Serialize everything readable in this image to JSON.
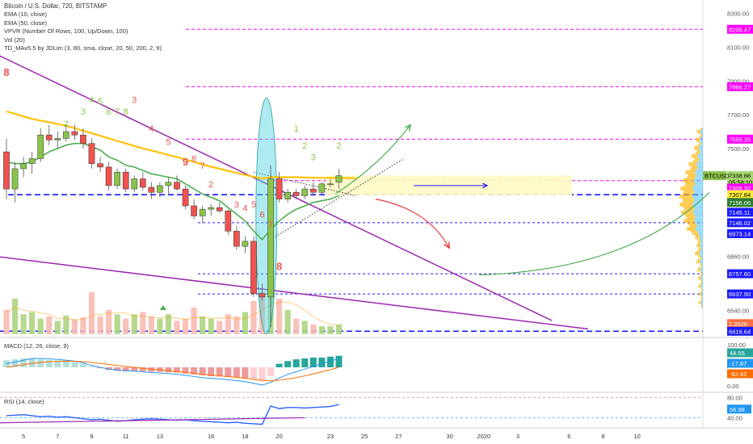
{
  "header": {
    "symbol_line": "Bitcoin / U.S. Dollar, 720, BITSTAMP",
    "indicators": [
      "EMA (10, close)",
      "EMA (50, close)",
      "VPVR (Number Of Rows, 100, Up/Down, 100)",
      "Vol (20)",
      "TD_MAv5.5 by JDLim (3, 80, sma, close, 20, 50, 200, 2, 9)"
    ]
  },
  "colors": {
    "up": "#8bc34a",
    "down": "#ef5350",
    "ema10": "#4caf50",
    "ema50": "#ffc107",
    "trend": "#9c27b0",
    "magenta": "#e91e63",
    "blue_dash": "#1a1aff",
    "highlight": "#fff9c4",
    "ellipse": "#4dd0e1",
    "macd_line": "#2196f3",
    "signal_line": "#ff6d00",
    "rsi_line": "#2962ff"
  },
  "price_axis": {
    "min": 6380,
    "max": 8380,
    "ticks": [
      "8300.00",
      "8100.00",
      "7900.00",
      "7700.00",
      "7500.00",
      "6860.00",
      "6540.00"
    ],
    "tags": [
      {
        "label": "8206.47",
        "value": 8206.47,
        "bg": "#ff00ff",
        "fg": "#ffffff"
      },
      {
        "label": "7866.27",
        "value": 7866.27,
        "bg": "#ff00ff",
        "fg": "#ffffff"
      },
      {
        "label": "7555.35",
        "value": 7555.35,
        "bg": "#ff00ff",
        "fg": "#ffffff"
      },
      {
        "label": "7338.86",
        "value": 7338.86,
        "bg": "#a5d66b",
        "fg": "#000000"
      },
      {
        "label": "05:58:10",
        "value": 7300,
        "bg": "#a5d66b",
        "fg": "#000000"
      },
      {
        "label": "7309.32",
        "value": 7265,
        "bg": "#ff00ff",
        "fg": "#ffffff"
      },
      {
        "label": "7307.84",
        "value": 7226,
        "bg": "#ffeb3b",
        "fg": "#000000"
      },
      {
        "label": "7156.06",
        "value": 7180,
        "bg": "#2e7d32",
        "fg": "#ffffff"
      },
      {
        "label": "7145.11",
        "value": 7122,
        "bg": "#1a1aff",
        "fg": "#ffffff"
      },
      {
        "label": "7146.02",
        "value": 7060,
        "bg": "#1a1aff",
        "fg": "#ffffff"
      },
      {
        "label": "6973.14",
        "value": 6995,
        "bg": "#1a1aff",
        "fg": "#ffffff"
      },
      {
        "label": "6757.60",
        "value": 6757.6,
        "bg": "#1a1aff",
        "fg": "#ffffff"
      },
      {
        "label": "6637.90",
        "value": 6637.9,
        "bg": "#1a1aff",
        "fg": "#ffffff"
      },
      {
        "label": "2.262K",
        "value": 6462,
        "bg": "#ff7043",
        "fg": "#ffffff"
      },
      {
        "label": "6416.64",
        "value": 6416.64,
        "bg": "#1a1aff",
        "fg": "#ffffff"
      }
    ],
    "badge": "BTCUSD"
  },
  "x_axis": {
    "labels": [
      {
        "t": "5",
        "i": 2
      },
      {
        "t": "7",
        "i": 6
      },
      {
        "t": "9",
        "i": 10
      },
      {
        "t": "11",
        "i": 14
      },
      {
        "t": "13",
        "i": 18
      },
      {
        "t": "16",
        "i": 24
      },
      {
        "t": "18",
        "i": 28
      },
      {
        "t": "20",
        "i": 32
      },
      {
        "t": "23",
        "i": 38
      },
      {
        "t": "25",
        "i": 42
      },
      {
        "t": "27",
        "i": 46
      },
      {
        "t": "30",
        "i": 52
      },
      {
        "t": "2020",
        "i": 56
      },
      {
        "t": "3",
        "i": 60
      },
      {
        "t": "6",
        "i": 66
      },
      {
        "t": "8",
        "i": 70
      },
      {
        "t": "10",
        "i": 74
      }
    ]
  },
  "levels": {
    "magenta": [
      8206.47,
      7866.27,
      7555.35,
      7309.32
    ],
    "blue": [
      7226,
      7060,
      6757.6,
      6637.9,
      6416.64
    ]
  },
  "chart_data": {
    "type": "candlestick",
    "candles": [
      [
        7480,
        7560,
        7200,
        7260
      ],
      [
        7260,
        7420,
        7180,
        7380
      ],
      [
        7380,
        7450,
        7330,
        7410
      ],
      [
        7410,
        7480,
        7350,
        7440
      ],
      [
        7440,
        7620,
        7420,
        7580
      ],
      [
        7580,
        7640,
        7520,
        7550
      ],
      [
        7550,
        7600,
        7500,
        7560
      ],
      [
        7560,
        7640,
        7540,
        7600
      ],
      [
        7600,
        7640,
        7550,
        7580
      ],
      [
        7580,
        7620,
        7500,
        7530
      ],
      [
        7530,
        7560,
        7380,
        7410
      ],
      [
        7410,
        7450,
        7360,
        7390
      ],
      [
        7390,
        7420,
        7250,
        7280
      ],
      [
        7280,
        7380,
        7260,
        7360
      ],
      [
        7360,
        7380,
        7240,
        7260
      ],
      [
        7260,
        7340,
        7240,
        7320
      ],
      [
        7320,
        7360,
        7250,
        7270
      ],
      [
        7270,
        7300,
        7200,
        7240
      ],
      [
        7240,
        7300,
        7210,
        7280
      ],
      [
        7280,
        7330,
        7230,
        7300
      ],
      [
        7300,
        7340,
        7250,
        7260
      ],
      [
        7260,
        7280,
        7140,
        7160
      ],
      [
        7160,
        7200,
        7080,
        7100
      ],
      [
        7100,
        7160,
        7060,
        7140
      ],
      [
        7140,
        7170,
        7100,
        7150
      ],
      [
        7150,
        7180,
        7120,
        7130
      ],
      [
        7130,
        7140,
        6990,
        7010
      ],
      [
        7010,
        7040,
        6900,
        6920
      ],
      [
        6920,
        6980,
        6880,
        6950
      ],
      [
        6950,
        6980,
        6620,
        6640
      ],
      [
        6640,
        6700,
        6600,
        6620
      ],
      [
        6620,
        7400,
        6440,
        7320
      ],
      [
        7320,
        7360,
        7180,
        7200
      ],
      [
        7200,
        7260,
        7180,
        7240
      ],
      [
        7240,
        7260,
        7200,
        7220
      ],
      [
        7220,
        7280,
        7200,
        7260
      ],
      [
        7260,
        7300,
        7220,
        7240
      ],
      [
        7240,
        7300,
        7230,
        7290
      ],
      [
        7290,
        7320,
        7270,
        7290
      ],
      [
        7300,
        7380,
        7260,
        7338.86
      ]
    ],
    "ema10": [
      7420,
      7410,
      7410,
      7420,
      7450,
      7480,
      7500,
      7520,
      7530,
      7530,
      7510,
      7490,
      7450,
      7430,
      7400,
      7390,
      7370,
      7350,
      7340,
      7330,
      7320,
      7290,
      7260,
      7230,
      7210,
      7190,
      7150,
      7110,
      7070,
      7010,
      6960,
      7020,
      7070,
      7110,
      7140,
      7160,
      7180,
      7190,
      7200,
      7220
    ],
    "ema50": [
      7720,
      7705,
      7690,
      7675,
      7665,
      7655,
      7645,
      7635,
      7620,
      7605,
      7590,
      7575,
      7560,
      7545,
      7530,
      7515,
      7500,
      7488,
      7475,
      7462,
      7450,
      7435,
      7420,
      7405,
      7392,
      7380,
      7367,
      7355,
      7343,
      7332,
      7322,
      7330,
      7330,
      7330,
      7330,
      7328,
      7327,
      7326,
      7326,
      7325
    ],
    "volume": [
      0.55,
      0.8,
      0.45,
      0.5,
      0.35,
      0.4,
      0.3,
      0.42,
      0.33,
      0.38,
      0.95,
      0.4,
      0.55,
      0.45,
      0.35,
      0.45,
      0.5,
      0.4,
      0.35,
      0.45,
      0.3,
      0.35,
      0.6,
      0.4,
      0.35,
      0.3,
      0.45,
      0.4,
      0.5,
      0.75,
      0.95,
      1.0,
      0.8,
      0.55,
      0.35,
      0.3,
      0.22,
      0.18,
      0.18,
      0.22
    ],
    "macd_hist": [
      0.4,
      0.45,
      0.5,
      0.48,
      0.45,
      0.4,
      0.38,
      0.35,
      0.3,
      0.2,
      0.05,
      -0.05,
      -0.15,
      -0.2,
      -0.22,
      -0.2,
      -0.22,
      -0.25,
      -0.25,
      -0.28,
      -0.3,
      -0.35,
      -0.4,
      -0.45,
      -0.5,
      -0.52,
      -0.55,
      -0.55,
      -0.6,
      -0.68,
      -0.75,
      -0.5,
      0.2,
      0.35,
      0.45,
      0.5,
      0.55,
      0.55,
      0.6,
      0.65
    ],
    "macd_line": [
      0.2,
      0.3,
      0.4,
      0.5,
      0.5,
      0.48,
      0.45,
      0.4,
      0.35,
      0.25,
      0.1,
      0.0,
      -0.1,
      -0.15,
      -0.2,
      -0.22,
      -0.25,
      -0.3,
      -0.32,
      -0.35,
      -0.4,
      -0.45,
      -0.52,
      -0.58,
      -0.62,
      -0.65,
      -0.7,
      -0.75,
      -0.8,
      -0.9,
      -1.0,
      -0.85,
      -0.6,
      -0.4,
      -0.25,
      -0.1,
      0.05,
      0.2,
      0.35,
      0.5
    ],
    "signal_line": [
      0.0,
      0.08,
      0.15,
      0.22,
      0.28,
      0.32,
      0.34,
      0.35,
      0.34,
      0.32,
      0.27,
      0.22,
      0.16,
      0.1,
      0.05,
      0.0,
      -0.05,
      -0.1,
      -0.15,
      -0.2,
      -0.24,
      -0.29,
      -0.34,
      -0.39,
      -0.44,
      -0.48,
      -0.52,
      -0.57,
      -0.62,
      -0.68,
      -0.74,
      -0.76,
      -0.73,
      -0.66,
      -0.58,
      -0.48,
      -0.37,
      -0.25,
      -0.13,
      0.0
    ],
    "rsi": [
      44,
      45,
      46,
      44,
      42,
      43,
      41,
      42,
      40,
      38,
      36,
      37,
      35,
      33,
      34,
      36,
      37,
      38,
      37,
      36,
      35,
      36,
      34,
      33,
      32,
      31,
      30,
      31,
      29,
      28,
      27,
      63,
      58,
      60,
      60,
      59,
      60,
      61,
      62,
      66
    ],
    "macd_tags": [
      {
        "label": "44.55",
        "bg": "#26a69a"
      },
      {
        "label": "-17.87",
        "bg": "#2196f3"
      },
      {
        "label": "-62.42",
        "bg": "#ff6d00"
      }
    ],
    "macd_ticks": [
      "100.00",
      "0.00"
    ],
    "rsi_ticks": [
      "80.00",
      "40.00"
    ],
    "rsi_tag": "56.98",
    "td_labels": [
      {
        "t": "8",
        "i": 0,
        "p": 7930,
        "c": "#ef5350",
        "bold": true
      },
      {
        "t": "1",
        "i": 4,
        "p": 7520,
        "c": "#8bc34a"
      },
      {
        "t": "2",
        "i": 7,
        "p": 7630,
        "c": "#8bc34a"
      },
      {
        "t": "3",
        "i": 9,
        "p": 7700,
        "c": "#8bc34a"
      },
      {
        "t": "4",
        "i": 10,
        "p": 7770,
        "c": "#8bc34a"
      },
      {
        "t": "5",
        "i": 11,
        "p": 7760,
        "c": "#8bc34a"
      },
      {
        "t": "6",
        "i": 12,
        "p": 7700,
        "c": "#8bc34a"
      },
      {
        "t": "7",
        "i": 13,
        "p": 7700,
        "c": "#8bc34a"
      },
      {
        "t": "8",
        "i": 14,
        "p": 7700,
        "c": "#8bc34a"
      },
      {
        "t": "3",
        "i": 15,
        "p": 7770,
        "c": "#ef5350"
      },
      {
        "t": "4",
        "i": 17,
        "p": 7600,
        "c": "#ef5350"
      },
      {
        "t": "5",
        "i": 19,
        "p": 7520,
        "c": "#ef5350"
      },
      {
        "t": "9",
        "i": 21,
        "p": 7400,
        "c": "#ef5350",
        "bold": true
      },
      {
        "t": "8",
        "i": 22,
        "p": 7420,
        "c": "#ef5350"
      },
      {
        "t": "7",
        "i": 23,
        "p": 7380,
        "c": "#ef5350"
      },
      {
        "t": "2",
        "i": 24,
        "p": 7270,
        "c": "#ef5350"
      },
      {
        "t": "3",
        "i": 27,
        "p": 7150,
        "c": "#ef5350"
      },
      {
        "t": "4",
        "i": 28,
        "p": 7130,
        "c": "#ef5350"
      },
      {
        "t": "5",
        "i": 29,
        "p": 7150,
        "c": "#ef5350"
      },
      {
        "t": "6",
        "i": 30,
        "p": 7090,
        "c": "#ef5350"
      },
      {
        "t": "7",
        "i": 31,
        "p": 7030,
        "c": "#ef5350"
      },
      {
        "t": "8",
        "i": 32,
        "p": 6780,
        "c": "#ef5350",
        "bold": true
      },
      {
        "t": "1",
        "i": 34,
        "p": 7600,
        "c": "#8bc34a"
      },
      {
        "t": "2",
        "i": 35,
        "p": 7500,
        "c": "#8bc34a"
      },
      {
        "t": "3",
        "i": 36,
        "p": 7430,
        "c": "#8bc34a"
      },
      {
        "t": "2",
        "i": 39,
        "p": 7500,
        "c": "#8bc34a"
      }
    ]
  }
}
